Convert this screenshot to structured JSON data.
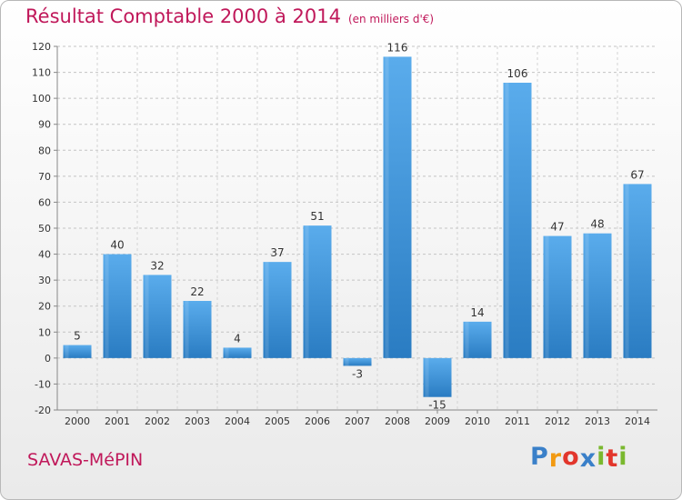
{
  "chart_data": {
    "type": "bar",
    "title": "Résultat Comptable 2000 à 2014",
    "subtitle": "(en milliers d'€)",
    "xlabel": "",
    "ylabel": "",
    "categories": [
      "2000",
      "2001",
      "2002",
      "2003",
      "2004",
      "2005",
      "2006",
      "2007",
      "2008",
      "2009",
      "2010",
      "2011",
      "2012",
      "2013",
      "2014"
    ],
    "values": [
      5,
      40,
      32,
      22,
      4,
      37,
      51,
      -3,
      116,
      -15,
      14,
      106,
      47,
      48,
      67
    ],
    "data_labels": [
      "5",
      "40",
      "32",
      "22",
      "4",
      "37",
      "51",
      "-3",
      "116",
      "-15",
      "14",
      "106",
      "47",
      "48",
      "67"
    ],
    "ylim": [
      -20,
      120
    ],
    "yticks": [
      -20,
      -10,
      0,
      10,
      20,
      30,
      40,
      50,
      60,
      70,
      80,
      90,
      100,
      110,
      120
    ],
    "grid": true,
    "bar_color": "#3a8fd6"
  },
  "commune": "SAVAS-MéPIN",
  "brand": {
    "letters": [
      "P",
      "r",
      "o",
      "x",
      "i",
      "t",
      "i"
    ],
    "colors": [
      "#3a80c9",
      "#f29a12",
      "#e2362c",
      "#3a80c9",
      "#7ab82e",
      "#e2362c",
      "#7ab82e"
    ]
  }
}
